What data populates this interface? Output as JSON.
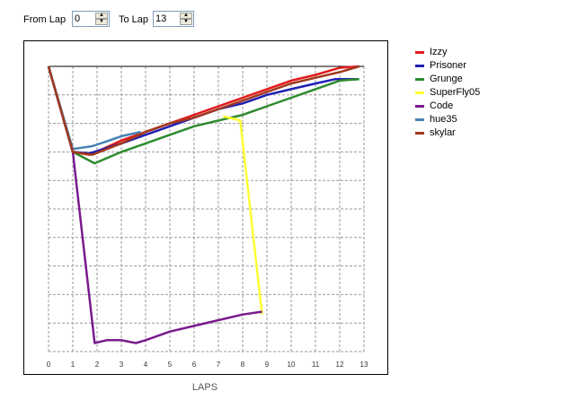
{
  "controls": {
    "from_label": "From Lap",
    "from_value": "0",
    "to_label": "To Lap",
    "to_value": "13"
  },
  "chart_data": {
    "type": "line",
    "xlabel": "LAPS",
    "x_ticks": [
      "0",
      "1",
      "2",
      "3",
      "4",
      "5",
      "6",
      "7",
      "8",
      "9",
      "10",
      "11",
      "12",
      "13"
    ],
    "xlim": [
      0,
      13
    ],
    "ylim": [
      1,
      11
    ],
    "y_inverted": true,
    "grid": true,
    "y_tick_labels_shown": false,
    "legend_position": "right",
    "series": [
      {
        "name": "Izzy",
        "color": "#e31a1c",
        "points": [
          [
            0,
            1
          ],
          [
            1,
            4
          ],
          [
            1.7,
            4.1
          ],
          [
            3,
            3.6
          ],
          [
            4,
            3.3
          ],
          [
            5,
            3.0
          ],
          [
            6,
            2.7
          ],
          [
            7,
            2.4
          ],
          [
            8,
            2.1
          ],
          [
            9,
            1.8
          ],
          [
            10,
            1.5
          ],
          [
            11,
            1.3
          ],
          [
            12,
            1.05
          ],
          [
            12.8,
            1
          ]
        ]
      },
      {
        "name": "Prisoner",
        "color": "#1f1fb4",
        "points": [
          [
            0,
            1
          ],
          [
            1,
            4
          ],
          [
            1.7,
            4.05
          ],
          [
            3,
            3.7
          ],
          [
            4,
            3.4
          ],
          [
            5,
            3.1
          ],
          [
            6,
            2.8
          ],
          [
            7,
            2.5
          ],
          [
            8,
            2.3
          ],
          [
            9,
            2.0
          ],
          [
            10,
            1.8
          ],
          [
            11,
            1.6
          ],
          [
            11.8,
            1.45
          ],
          [
            12.8,
            1.45
          ]
        ]
      },
      {
        "name": "Grunge",
        "color": "#2e8b2e",
        "points": [
          [
            0,
            1
          ],
          [
            1,
            4
          ],
          [
            1.9,
            4.4
          ],
          [
            3,
            4.0
          ],
          [
            4,
            3.7
          ],
          [
            5,
            3.4
          ],
          [
            6,
            3.1
          ],
          [
            7,
            2.9
          ],
          [
            8,
            2.7
          ],
          [
            9,
            2.4
          ],
          [
            10,
            2.1
          ],
          [
            11,
            1.8
          ],
          [
            12,
            1.5
          ],
          [
            12.8,
            1.45
          ]
        ]
      },
      {
        "name": "SuperFly05",
        "color": "#ffff33",
        "points": [
          [
            7.2,
            2.75
          ],
          [
            7.9,
            2.9
          ],
          [
            8.8,
            9.7
          ]
        ]
      },
      {
        "name": "Code",
        "color": "#7a1a8c",
        "points": [
          [
            0,
            1
          ],
          [
            1,
            4
          ],
          [
            1.9,
            10.7
          ],
          [
            2.4,
            10.6
          ],
          [
            3,
            10.6
          ],
          [
            3.6,
            10.7
          ],
          [
            4,
            10.6
          ],
          [
            5,
            10.3
          ],
          [
            6,
            10.1
          ],
          [
            7,
            9.9
          ],
          [
            8,
            9.7
          ],
          [
            8.8,
            9.6
          ]
        ]
      },
      {
        "name": "hue35",
        "color": "#4682b4",
        "points": [
          [
            0,
            1
          ],
          [
            1,
            3.9
          ],
          [
            1.8,
            3.8
          ],
          [
            2.5,
            3.6
          ],
          [
            3,
            3.45
          ],
          [
            3.8,
            3.3
          ]
        ]
      },
      {
        "name": "skylar",
        "color": "#a0391e",
        "points": [
          [
            0,
            1
          ],
          [
            1,
            4
          ],
          [
            1.8,
            4.1
          ],
          [
            3,
            3.7
          ],
          [
            4,
            3.3
          ],
          [
            5,
            3.0
          ],
          [
            6,
            2.8
          ],
          [
            7,
            2.5
          ],
          [
            8,
            2.2
          ],
          [
            9,
            1.9
          ],
          [
            10,
            1.6
          ],
          [
            11,
            1.4
          ],
          [
            12,
            1.2
          ],
          [
            12.8,
            1
          ]
        ]
      }
    ]
  }
}
